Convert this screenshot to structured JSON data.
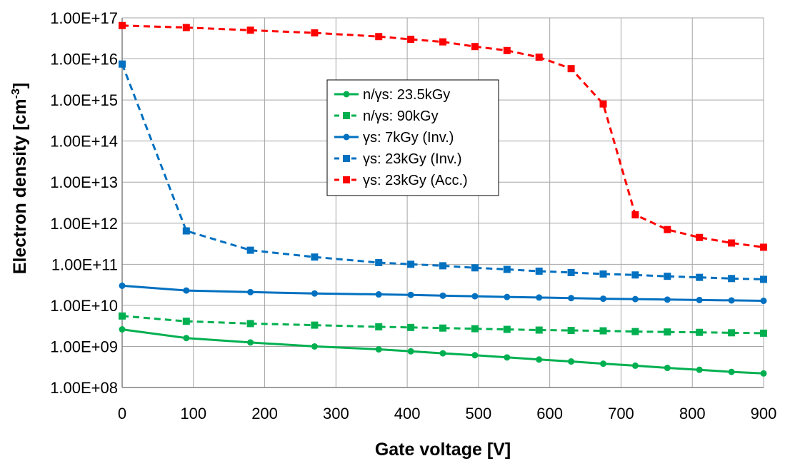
{
  "chart_data": {
    "type": "line",
    "title": "",
    "xlabel": "Gate voltage [V]",
    "ylabel": "Electron density [cm",
    "ylabel_sup": "-3",
    "ylabel_close": "]",
    "yscale": "log",
    "xlim": [
      0,
      900
    ],
    "ylim": [
      100000000.0,
      1e+17
    ],
    "x_ticks": [
      "0",
      "100",
      "200",
      "300",
      "400",
      "500",
      "600",
      "700",
      "800",
      "900"
    ],
    "y_ticks": [
      "1.00E+08",
      "1.00E+09",
      "1.00E+10",
      "1.00E+11",
      "1.00E+12",
      "1.00E+13",
      "1.00E+14",
      "1.00E+15",
      "1.00E+16",
      "1.00E+17"
    ],
    "grid": true,
    "legend_position": "upper-center",
    "series": [
      {
        "name": "n/γs: 23.5kGy",
        "color": "#00b050",
        "dash": "solid",
        "marker": "circle",
        "x": [
          0,
          90,
          180,
          270,
          360,
          405,
          450,
          495,
          540,
          585,
          630,
          675,
          720,
          765,
          810,
          855,
          900
        ],
        "values": [
          2600000000.0,
          1600000000.0,
          1250000000.0,
          1000000000.0,
          850000000.0,
          760000000.0,
          680000000.0,
          610000000.0,
          540000000.0,
          480000000.0,
          430000000.0,
          380000000.0,
          340000000.0,
          300000000.0,
          270000000.0,
          240000000.0,
          220000000.0
        ]
      },
      {
        "name": "n/γs: 90kGy",
        "color": "#00b050",
        "dash": "dashed",
        "marker": "square",
        "x": [
          0,
          90,
          180,
          270,
          360,
          405,
          450,
          495,
          540,
          585,
          630,
          675,
          720,
          765,
          810,
          855,
          900
        ],
        "values": [
          5500000000.0,
          4100000000.0,
          3600000000.0,
          3300000000.0,
          3000000000.0,
          2900000000.0,
          2800000000.0,
          2700000000.0,
          2600000000.0,
          2500000000.0,
          2450000000.0,
          2400000000.0,
          2300000000.0,
          2250000000.0,
          2200000000.0,
          2150000000.0,
          2100000000.0
        ]
      },
      {
        "name": "γs: 7kGy (Inv.)",
        "color": "#0070c0",
        "dash": "solid",
        "marker": "circle",
        "x": [
          0,
          90,
          180,
          270,
          360,
          405,
          450,
          495,
          540,
          585,
          630,
          675,
          720,
          765,
          810,
          855,
          900
        ],
        "values": [
          30000000000.0,
          23000000000.0,
          21000000000.0,
          19500000000.0,
          18500000000.0,
          18000000000.0,
          17200000000.0,
          16700000000.0,
          16000000000.0,
          15500000000.0,
          15000000000.0,
          14500000000.0,
          14200000000.0,
          13800000000.0,
          13500000000.0,
          13200000000.0,
          12900000000.0
        ]
      },
      {
        "name": "γs: 23kGy (Inv.)",
        "color": "#0070c0",
        "dash": "dashed",
        "marker": "square",
        "x": [
          0,
          90,
          180,
          270,
          360,
          405,
          450,
          495,
          540,
          585,
          630,
          675,
          720,
          765,
          810,
          855,
          900
        ],
        "values": [
          7500000000000000.0,
          650000000000.0,
          220000000000.0,
          150000000000.0,
          110000000000.0,
          100000000000.0,
          92000000000.0,
          82000000000.0,
          75000000000.0,
          68000000000.0,
          63000000000.0,
          58000000000.0,
          55000000000.0,
          51000000000.0,
          48000000000.0,
          45000000000.0,
          43000000000.0
        ]
      },
      {
        "name": "γs: 23kGy (Acc.)",
        "color": "#ff0000",
        "dash": "dashed",
        "marker": "square",
        "x": [
          0,
          90,
          180,
          270,
          360,
          405,
          450,
          495,
          540,
          585,
          630,
          675,
          720,
          765,
          810,
          855,
          900
        ],
        "values": [
          6.5e+16,
          5.8e+16,
          5e+16,
          4.3e+16,
          3.5e+16,
          3e+16,
          2.6e+16,
          2e+16,
          1.6e+16,
          1.1e+16,
          5800000000000000.0,
          800000000000000.0,
          1600000000000.0,
          700000000000.0,
          450000000000.0,
          330000000000.0,
          260000000000.0
        ]
      }
    ]
  }
}
